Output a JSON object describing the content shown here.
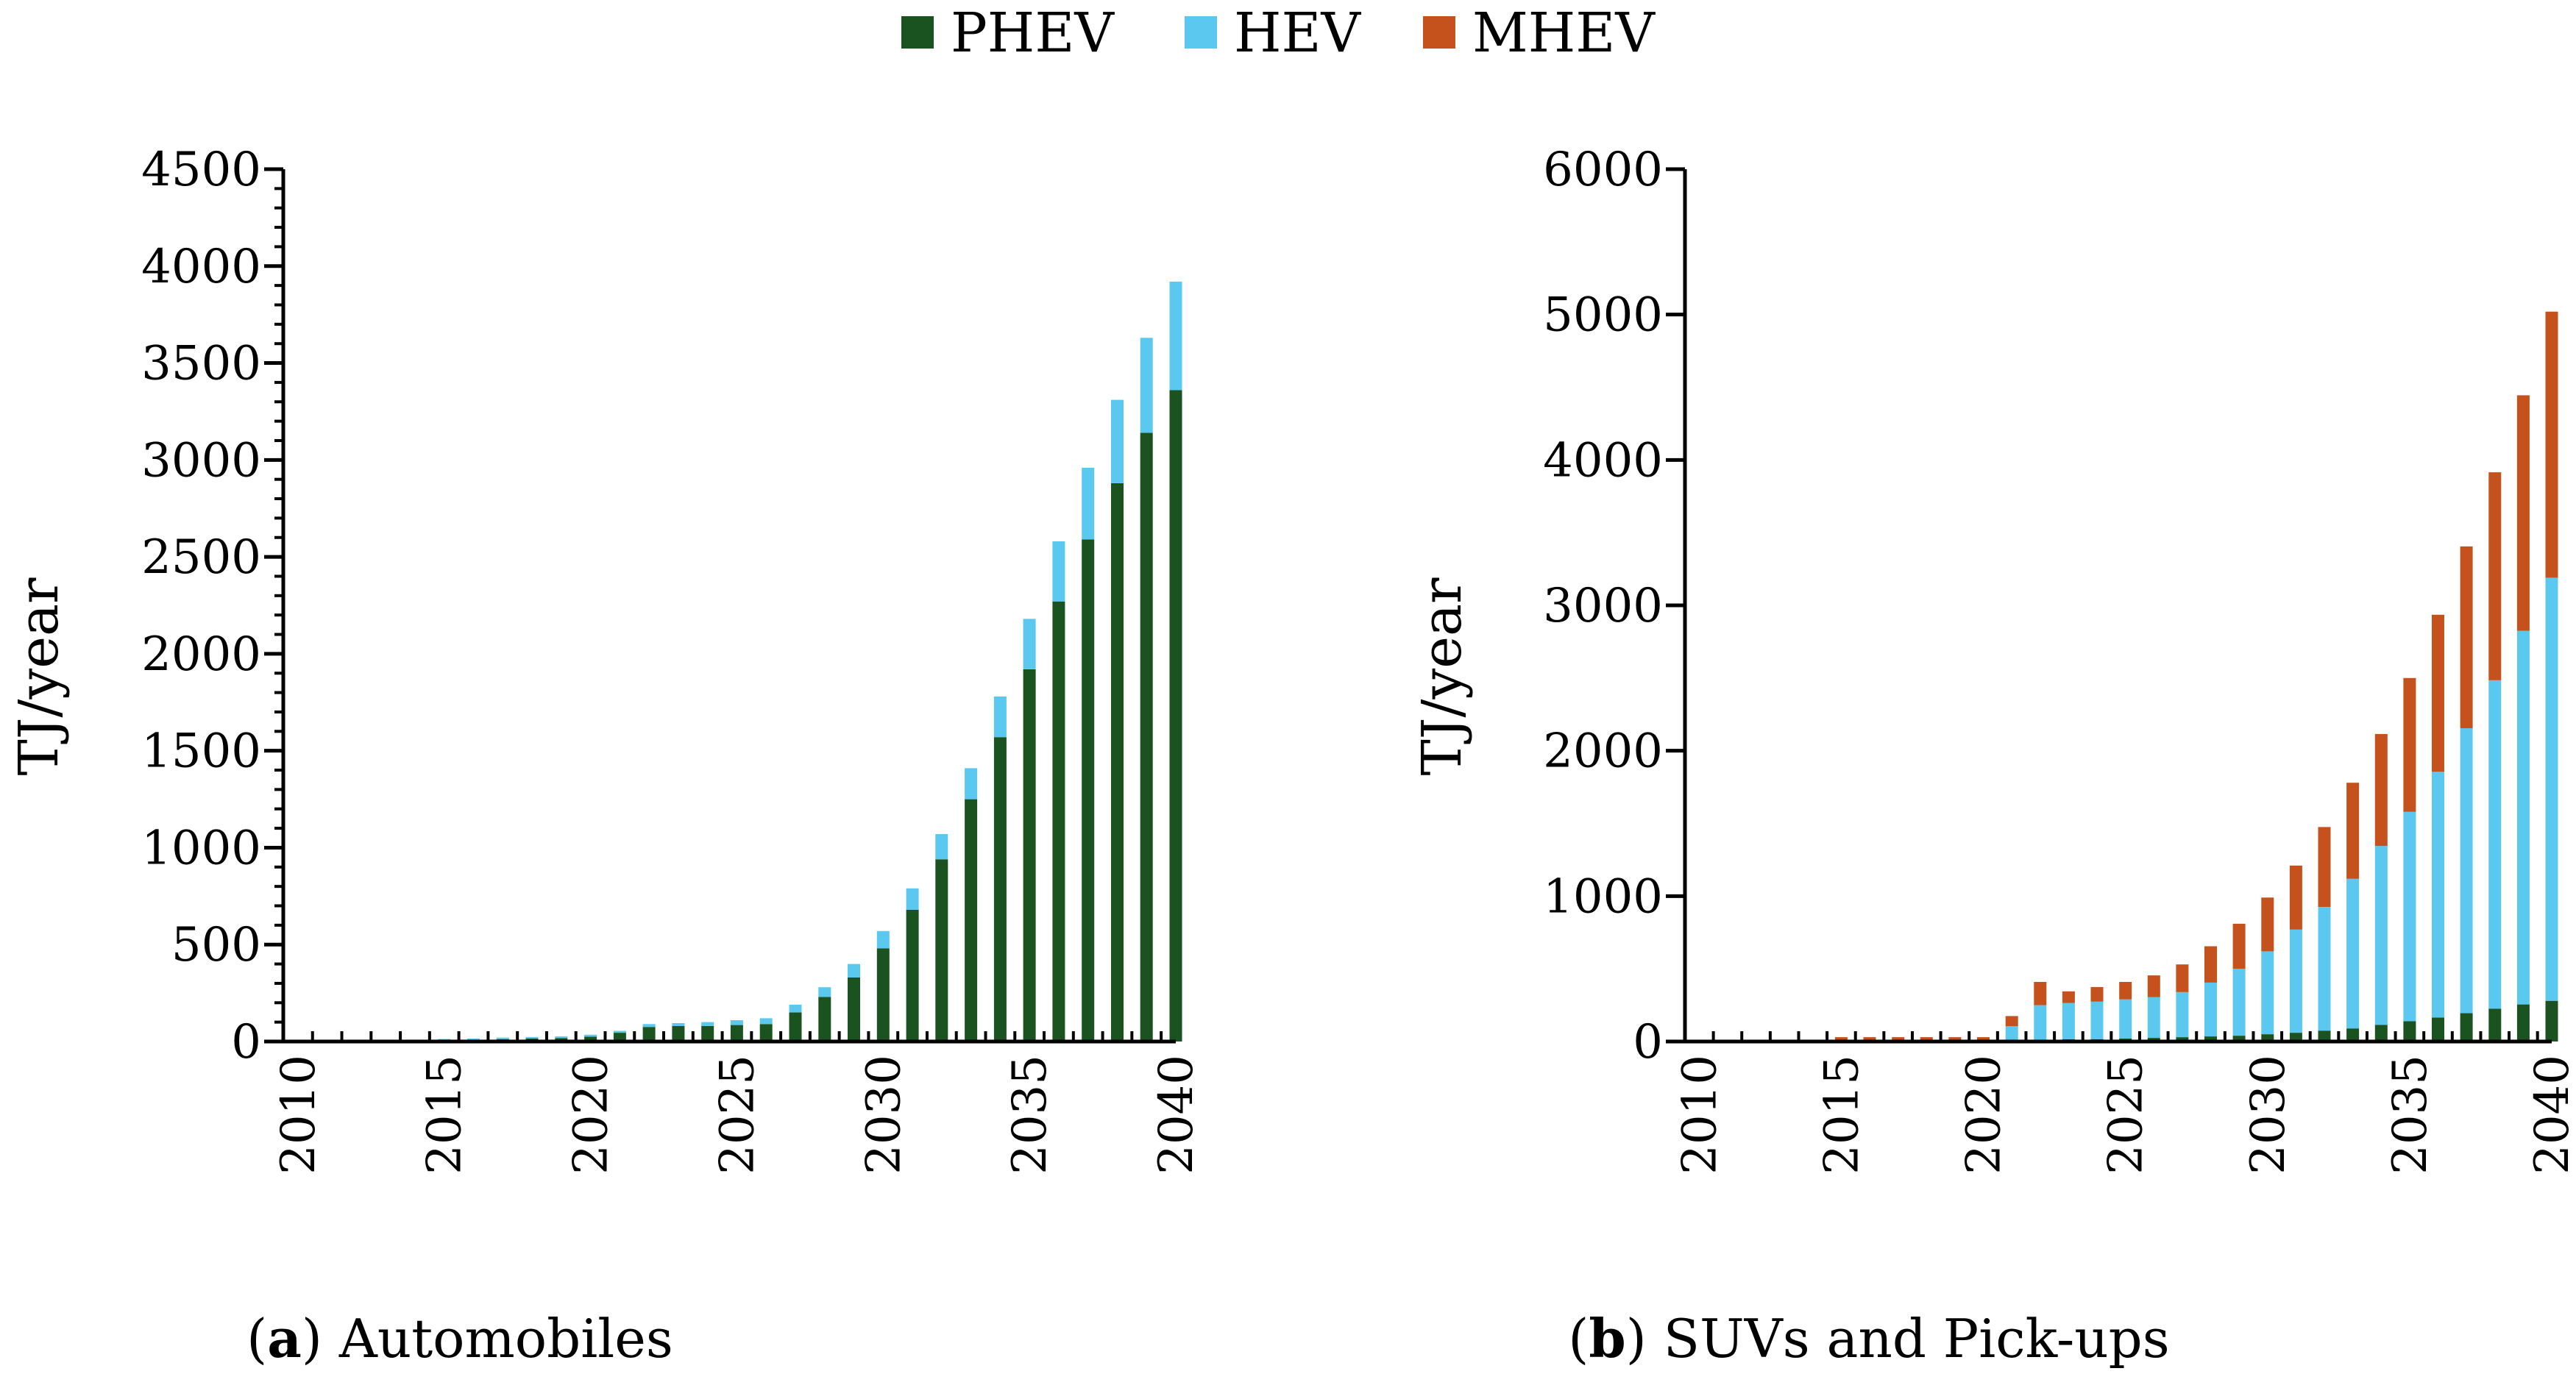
{
  "colors": {
    "phev": "#1b5320",
    "hev": "#5bc8f0",
    "mhev": "#c5511c",
    "axis": "#000000"
  },
  "legend": [
    {
      "name": "PHEV",
      "color_key": "phev"
    },
    {
      "name": "HEV",
      "color_key": "hev"
    },
    {
      "name": "MHEV",
      "color_key": "mhev"
    }
  ],
  "chart_data": [
    {
      "type": "bar",
      "stacked": true,
      "panel": "a",
      "caption_letter": "a",
      "caption_text": " Automobiles",
      "ylabel": "TJ/year",
      "xlabel": "",
      "ylim": [
        0,
        4500
      ],
      "yticks": [
        "0",
        "500",
        "1000",
        "1500",
        "2000",
        "2500",
        "3000",
        "3500",
        "4000",
        "4500"
      ],
      "xtick_labels": [
        "2010",
        "2015",
        "2020",
        "2025",
        "2030",
        "2035",
        "2040"
      ],
      "categories": [
        2010,
        2011,
        2012,
        2013,
        2014,
        2015,
        2016,
        2017,
        2018,
        2019,
        2020,
        2021,
        2022,
        2023,
        2024,
        2025,
        2026,
        2027,
        2028,
        2029,
        2030,
        2031,
        2032,
        2033,
        2034,
        2035,
        2036,
        2037,
        2038,
        2039,
        2040
      ],
      "series": [
        {
          "name": "PHEV",
          "values": [
            5,
            5,
            5,
            5,
            5,
            8,
            10,
            12,
            15,
            18,
            25,
            45,
            75,
            80,
            80,
            85,
            90,
            150,
            230,
            330,
            480,
            680,
            940,
            1250,
            1570,
            1920,
            2270,
            2590,
            2880,
            3140,
            3360
          ]
        },
        {
          "name": "HEV",
          "values": [
            0,
            0,
            0,
            0,
            0,
            5,
            5,
            8,
            8,
            8,
            10,
            10,
            15,
            15,
            20,
            25,
            30,
            40,
            50,
            70,
            90,
            110,
            130,
            160,
            210,
            260,
            310,
            370,
            430,
            490,
            560
          ]
        },
        {
          "name": "MHEV",
          "values": [
            0,
            0,
            0,
            0,
            0,
            0,
            0,
            0,
            0,
            0,
            0,
            0,
            0,
            0,
            0,
            0,
            0,
            0,
            0,
            0,
            0,
            0,
            0,
            0,
            0,
            0,
            0,
            0,
            0,
            0,
            0
          ]
        }
      ]
    },
    {
      "type": "bar",
      "stacked": true,
      "panel": "b",
      "caption_letter": "b",
      "caption_text": " SUVs and Pick-ups",
      "ylabel": "TJ/year",
      "xlabel": "",
      "ylim": [
        0,
        6000
      ],
      "yticks": [
        "0",
        "1000",
        "2000",
        "3000",
        "4000",
        "5000",
        "6000"
      ],
      "xtick_labels": [
        "2010",
        "2015",
        "2020",
        "2025",
        "2030",
        "2035",
        "2040"
      ],
      "categories": [
        2010,
        2011,
        2012,
        2013,
        2014,
        2015,
        2016,
        2017,
        2018,
        2019,
        2020,
        2021,
        2022,
        2023,
        2024,
        2025,
        2026,
        2027,
        2028,
        2029,
        2030,
        2031,
        2032,
        2033,
        2034,
        2035,
        2036,
        2037,
        2038,
        2039,
        2040
      ],
      "series": [
        {
          "name": "PHEV",
          "values": [
            0,
            0,
            0,
            0,
            0,
            0,
            0,
            0,
            0,
            0,
            0,
            5,
            10,
            15,
            15,
            20,
            25,
            30,
            35,
            40,
            50,
            60,
            75,
            90,
            115,
            140,
            165,
            195,
            225,
            255,
            280
          ]
        },
        {
          "name": "HEV",
          "values": [
            0,
            0,
            0,
            0,
            0,
            0,
            0,
            0,
            0,
            0,
            0,
            100,
            240,
            250,
            260,
            270,
            280,
            310,
            370,
            460,
            570,
            710,
            850,
            1030,
            1230,
            1440,
            1690,
            1960,
            2260,
            2570,
            2910
          ]
        },
        {
          "name": "MHEV",
          "values": [
            0,
            0,
            0,
            0,
            0,
            30,
            30,
            30,
            30,
            30,
            30,
            70,
            160,
            80,
            100,
            120,
            150,
            190,
            250,
            310,
            370,
            440,
            550,
            660,
            770,
            920,
            1080,
            1250,
            1430,
            1620,
            1830
          ]
        }
      ]
    }
  ]
}
